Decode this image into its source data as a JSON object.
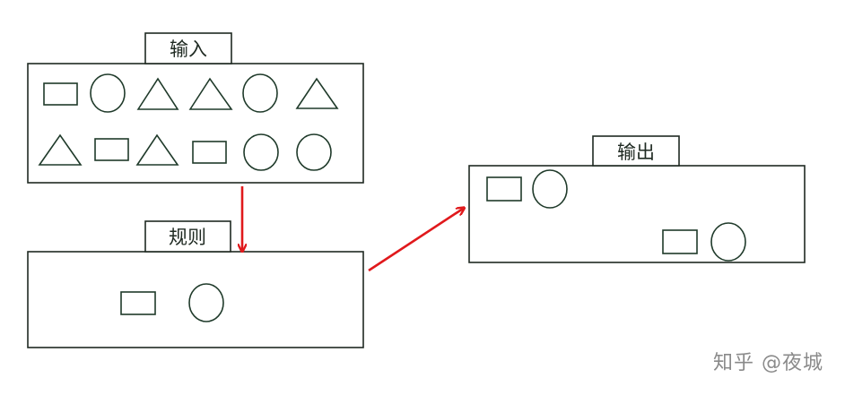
{
  "labels": {
    "input": "输入",
    "rule": "规则",
    "output": "输出"
  },
  "watermark": "知乎 @夜城",
  "colors": {
    "stroke": "#1f2a22",
    "shape_stroke": "#1f3a2a",
    "arrow": "#e0191c",
    "watermark": "#8a8a8a"
  },
  "input_shapes": {
    "row1": [
      "rectangle",
      "circle",
      "triangle",
      "triangle",
      "circle",
      "triangle"
    ],
    "row2": [
      "triangle",
      "rectangle",
      "triangle",
      "rectangle",
      "circle",
      "circle"
    ]
  },
  "rule_shapes": [
    "rectangle",
    "circle"
  ],
  "output_shapes": [
    "rectangle",
    "circle",
    "rectangle",
    "circle"
  ]
}
